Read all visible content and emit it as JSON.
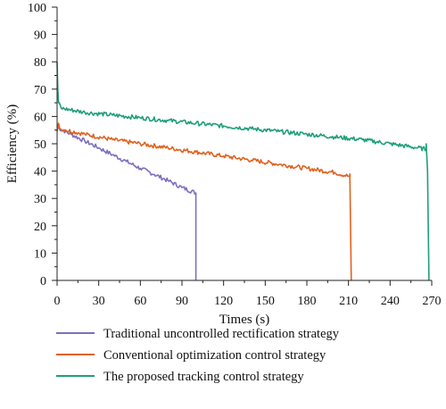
{
  "chart_data": {
    "type": "line",
    "title": "",
    "xlabel": "Times (s)",
    "ylabel": "Efficiency (%)",
    "xlim": [
      0,
      270
    ],
    "ylim": [
      0,
      100
    ],
    "x_ticks": [
      0,
      30,
      60,
      90,
      120,
      150,
      180,
      210,
      240,
      270
    ],
    "y_ticks": [
      0,
      10,
      20,
      30,
      40,
      50,
      60,
      70,
      80,
      90,
      100
    ],
    "grid": false,
    "legend_position": "bottom",
    "series": [
      {
        "name": "Traditional uncontrolled rectification strategy",
        "color": "#7b6fbf",
        "points": [
          [
            0,
            56
          ],
          [
            10,
            53.5
          ],
          [
            20,
            51
          ],
          [
            30,
            48.5
          ],
          [
            40,
            46
          ],
          [
            50,
            43.5
          ],
          [
            60,
            41
          ],
          [
            70,
            38.8
          ],
          [
            80,
            36.5
          ],
          [
            90,
            34
          ],
          [
            100,
            32
          ],
          [
            100,
            0
          ]
        ]
      },
      {
        "name": "Conventional optimization control strategy",
        "color": "#e0621f",
        "points": [
          [
            0,
            54.5
          ],
          [
            1,
            57.5
          ],
          [
            2,
            55.5
          ],
          [
            20,
            53.5
          ],
          [
            40,
            51.5
          ],
          [
            60,
            50
          ],
          [
            80,
            48.5
          ],
          [
            100,
            47
          ],
          [
            120,
            45.5
          ],
          [
            140,
            44
          ],
          [
            160,
            42.5
          ],
          [
            180,
            41
          ],
          [
            200,
            39.5
          ],
          [
            211,
            38
          ],
          [
            211,
            39
          ],
          [
            212,
            0
          ]
        ]
      },
      {
        "name": "The proposed tracking control strategy",
        "color": "#1f9e7a",
        "points": [
          [
            0,
            80
          ],
          [
            0.5,
            70
          ],
          [
            1,
            65
          ],
          [
            3,
            63
          ],
          [
            20,
            61.5
          ],
          [
            40,
            60.5
          ],
          [
            60,
            59.5
          ],
          [
            80,
            58.5
          ],
          [
            100,
            57.5
          ],
          [
            120,
            56.5
          ],
          [
            140,
            55.5
          ],
          [
            160,
            54.5
          ],
          [
            180,
            53.5
          ],
          [
            200,
            52.5
          ],
          [
            220,
            51.5
          ],
          [
            240,
            50
          ],
          [
            260,
            48.5
          ],
          [
            266,
            48
          ],
          [
            266,
            50
          ],
          [
            267,
            40
          ],
          [
            268,
            0
          ]
        ]
      }
    ]
  }
}
